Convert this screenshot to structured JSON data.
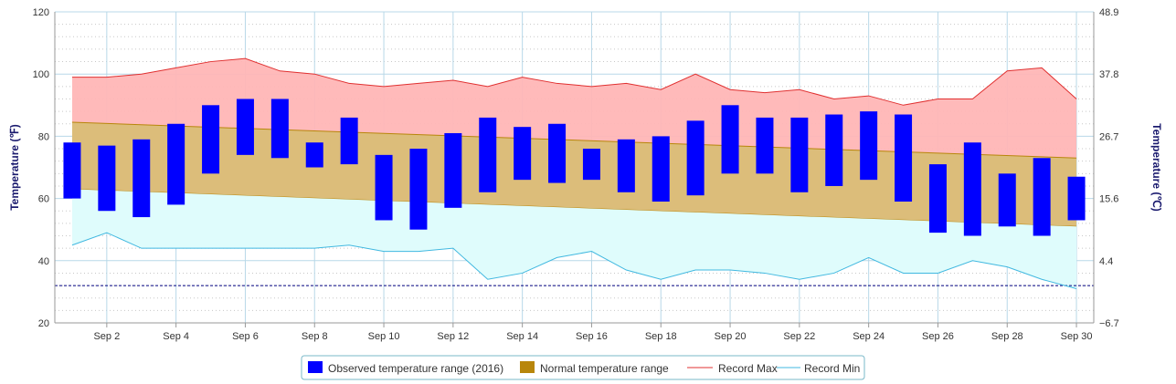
{
  "chart_data": {
    "type": "bar",
    "ylabel_left": "Temperature (℉)",
    "ylabel_right": "Temperature (℃)",
    "ylim": [
      20,
      120
    ],
    "y_ticks_left": [
      20,
      40,
      60,
      80,
      100,
      120
    ],
    "y_ticks_right": [
      "−6.7",
      "4.4",
      "15.6",
      "26.7",
      "37.8",
      "48.9"
    ],
    "x_days": [
      1,
      2,
      3,
      4,
      5,
      6,
      7,
      8,
      9,
      10,
      11,
      12,
      13,
      14,
      15,
      16,
      17,
      18,
      19,
      20,
      21,
      22,
      23,
      24,
      25,
      26,
      27,
      28,
      29,
      30
    ],
    "x_tick_days": [
      2,
      4,
      6,
      8,
      10,
      12,
      14,
      16,
      18,
      20,
      22,
      24,
      26,
      28,
      30
    ],
    "x_tick_labels": [
      "Sep 2",
      "Sep 4",
      "Sep 6",
      "Sep 8",
      "Sep 10",
      "Sep 12",
      "Sep 14",
      "Sep 16",
      "Sep 18",
      "Sep 20",
      "Sep 22",
      "Sep 24",
      "Sep 26",
      "Sep 28",
      "Sep 30"
    ],
    "grid": true,
    "legend_position": "bottom",
    "series": [
      {
        "name": "Observed temperature range (2016)",
        "kind": "range-bar",
        "color": "#0000ff",
        "low": [
          60,
          56,
          54,
          58,
          68,
          74,
          73,
          70,
          71,
          53,
          50,
          57,
          62,
          66,
          65,
          66,
          62,
          59,
          61,
          68,
          68,
          62,
          64,
          66,
          59,
          49,
          48,
          51,
          48,
          53
        ],
        "high": [
          78,
          77,
          79,
          84,
          90,
          92,
          92,
          78,
          86,
          74,
          76,
          81,
          86,
          83,
          84,
          76,
          79,
          80,
          85,
          90,
          86,
          86,
          87,
          88,
          87,
          71,
          78,
          68,
          73,
          67
        ]
      },
      {
        "name": "Normal temperature range",
        "kind": "band",
        "color": "#b8860b",
        "low_start": 63,
        "low_end": 51,
        "high_start": 84.5,
        "high_end": 73
      },
      {
        "name": "Record Max",
        "kind": "line",
        "color": "#e03030",
        "values": [
          99,
          99,
          100,
          102,
          104,
          105,
          101,
          100,
          97,
          96,
          97,
          98,
          96,
          99,
          97,
          96,
          97,
          95,
          100,
          95,
          94,
          95,
          92,
          93,
          90,
          92,
          92,
          101,
          102,
          92
        ]
      },
      {
        "name": "Record Min",
        "kind": "line",
        "color": "#40b8e0",
        "values": [
          45,
          49,
          44,
          44,
          44,
          44,
          44,
          44,
          45,
          43,
          43,
          44,
          34,
          36,
          41,
          43,
          37,
          34,
          37,
          37,
          36,
          34,
          36,
          41,
          36,
          36,
          40,
          38,
          34,
          31
        ]
      }
    ],
    "reference_line": {
      "value": 32,
      "color": "#000080"
    }
  }
}
